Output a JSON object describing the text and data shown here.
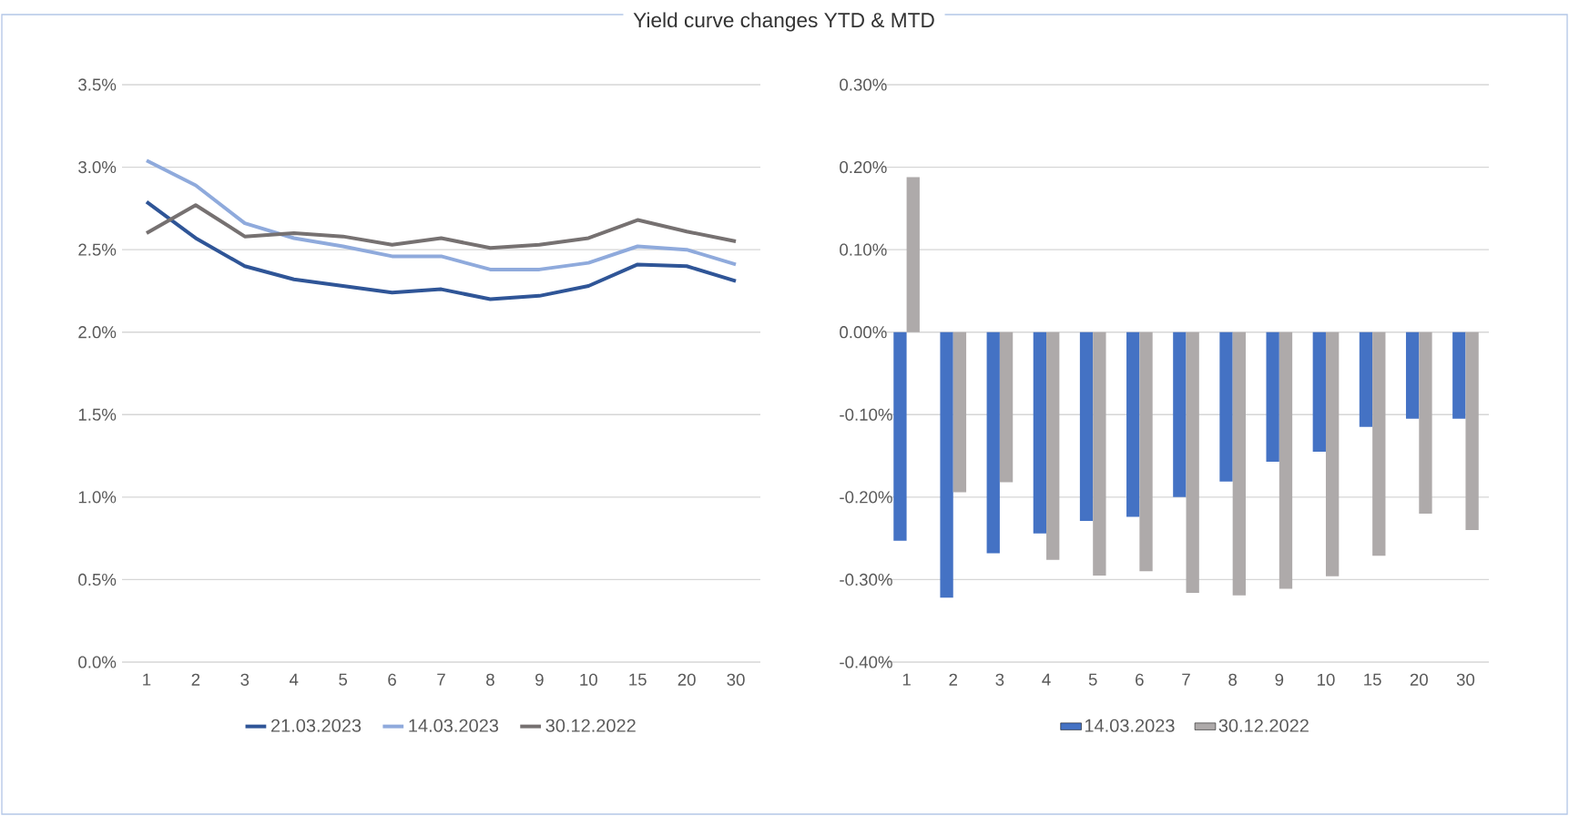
{
  "chart_data": [
    {
      "type": "line",
      "title": "Yield curve changes YTD & MTD",
      "categories": [
        "1",
        "2",
        "3",
        "4",
        "5",
        "6",
        "7",
        "8",
        "9",
        "10",
        "15",
        "20",
        "30"
      ],
      "series": [
        {
          "name": "21.03.2023",
          "color": "#2f5597",
          "values": [
            2.79,
            2.57,
            2.4,
            2.32,
            2.28,
            2.24,
            2.26,
            2.2,
            2.22,
            2.28,
            2.41,
            2.4,
            2.31
          ]
        },
        {
          "name": "14.03.2023",
          "color": "#8faadc",
          "values": [
            3.04,
            2.89,
            2.66,
            2.57,
            2.52,
            2.46,
            2.46,
            2.38,
            2.38,
            2.42,
            2.52,
            2.5,
            2.41
          ]
        },
        {
          "name": "30.12.2022",
          "color": "#767171",
          "values": [
            2.6,
            2.77,
            2.58,
            2.6,
            2.58,
            2.53,
            2.57,
            2.51,
            2.53,
            2.57,
            2.68,
            2.61,
            2.55
          ]
        }
      ],
      "ylim": [
        0,
        3.5
      ],
      "yticks": [
        {
          "value": 0,
          "label": "0.0%"
        },
        {
          "value": 0.5,
          "label": "0.5%"
        },
        {
          "value": 1,
          "label": "1.0%"
        },
        {
          "value": 1.5,
          "label": "1.5%"
        },
        {
          "value": 2,
          "label": "2.0%"
        },
        {
          "value": 2.5,
          "label": "2.5%"
        },
        {
          "value": 3,
          "label": "3.0%"
        },
        {
          "value": 3.5,
          "label": "3.5%"
        }
      ],
      "grid": "y",
      "legend": "bottom",
      "marker": "none",
      "line_style": "solid"
    },
    {
      "type": "bar",
      "categories": [
        "1",
        "2",
        "3",
        "4",
        "5",
        "6",
        "7",
        "8",
        "9",
        "10",
        "15",
        "20",
        "30"
      ],
      "series": [
        {
          "name": "14.03.2023",
          "color": "#4472c4",
          "values": [
            -0.253,
            -0.322,
            -0.268,
            -0.244,
            -0.229,
            -0.224,
            -0.2,
            -0.181,
            -0.157,
            -0.145,
            -0.115,
            -0.105,
            -0.105
          ]
        },
        {
          "name": "30.12.2022",
          "color": "#aeaaaa",
          "values": [
            0.188,
            -0.194,
            -0.182,
            -0.276,
            -0.295,
            -0.29,
            -0.316,
            -0.319,
            -0.311,
            -0.296,
            -0.271,
            -0.22,
            -0.24
          ]
        }
      ],
      "ylim": [
        -0.4,
        0.3
      ],
      "yticks": [
        {
          "value": -0.4,
          "label": "-0.40%"
        },
        {
          "value": -0.3,
          "label": "-0.30%"
        },
        {
          "value": -0.2,
          "label": "-0.20%"
        },
        {
          "value": -0.1,
          "label": "-0.10%"
        },
        {
          "value": 0,
          "label": "0.00%"
        },
        {
          "value": 0.1,
          "label": "0.10%"
        },
        {
          "value": 0.2,
          "label": "0.20%"
        },
        {
          "value": 0.3,
          "label": "0.30%"
        }
      ],
      "grid": "y",
      "legend": "bottom"
    }
  ]
}
